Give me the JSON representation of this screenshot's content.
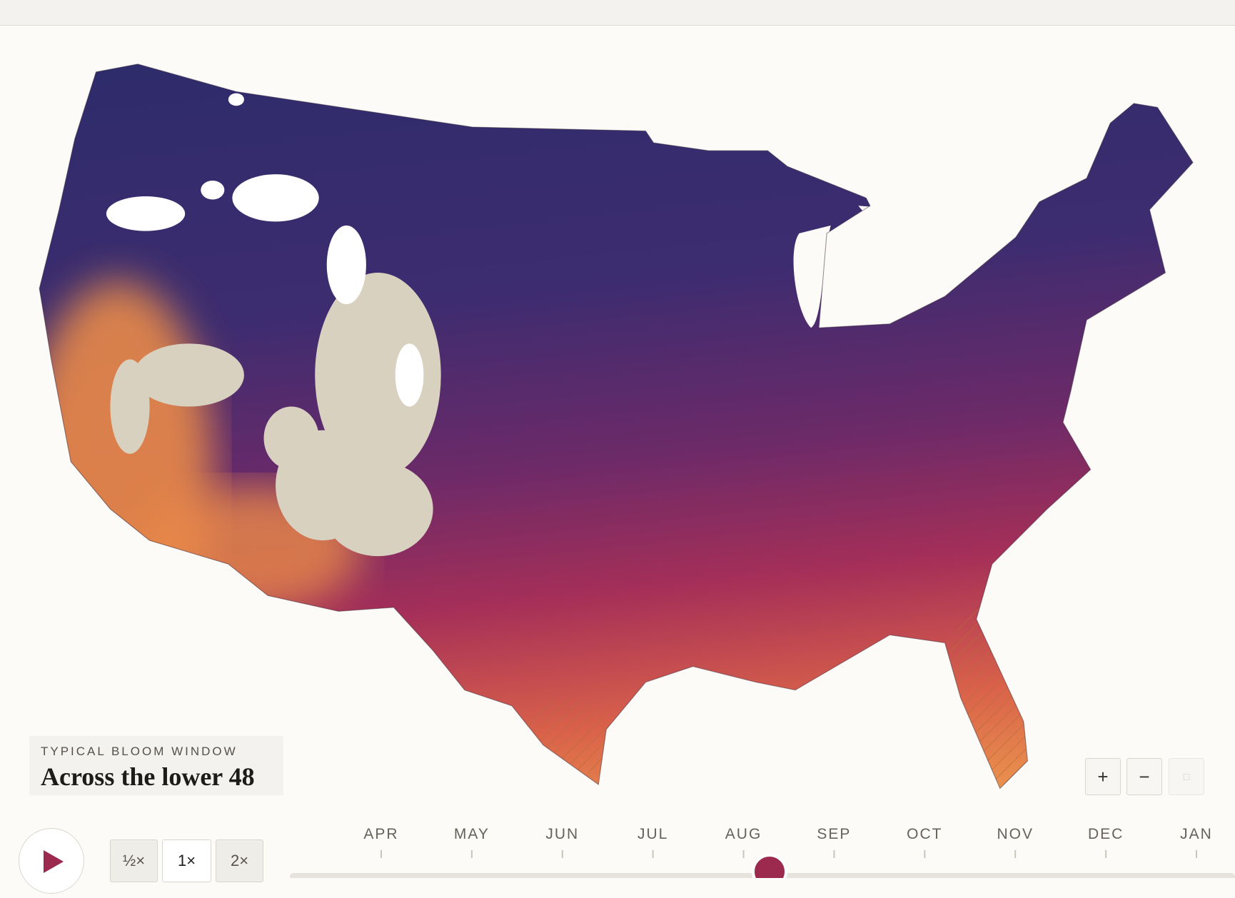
{
  "header": {
    "eyebrow": "TYPICAL BLOOM WINDOW",
    "title": "Across the lower 48"
  },
  "zoom_controls": [
    "+",
    "−"
  ],
  "speed_options": [
    "½×",
    "1×",
    "2×"
  ],
  "timeline": {
    "months": [
      "APR",
      "MAY",
      "JUN",
      "JUL",
      "AUG",
      "SEP",
      "OCT",
      "NOV",
      "DEC",
      "JAN"
    ]
  }
}
